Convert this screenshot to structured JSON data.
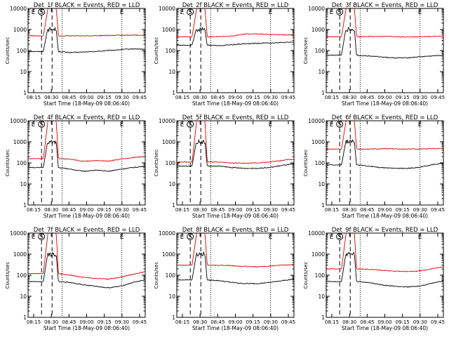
{
  "colors": {
    "events": "#000000",
    "lld": "#e00000",
    "background": "#ffffff",
    "axes": "#000000"
  },
  "chart_data": [
    {
      "type": "line",
      "title": "Det_1f BLACK = Events, RED = LLD",
      "xlabel": "Start Time (18-May-09 08:06:40)",
      "ylabel": "Counts/sec",
      "yscale": "log",
      "ylim": [
        1,
        10000
      ],
      "yticks": [
        "1",
        "10",
        "100",
        "1000",
        "10000"
      ],
      "xticks": [
        "08:15",
        "08:30",
        "08:45",
        "09:00",
        "09:15",
        "09:30",
        "09:45"
      ],
      "annotations": [
        "E",
        "S",
        "E"
      ],
      "series": [
        {
          "color": "#000000",
          "levels": [
            90,
            80,
            85,
            90,
            100,
            110,
            120,
            115
          ]
        },
        {
          "color": "#e00000",
          "levels": [
            500,
            500,
            500,
            510,
            520,
            530,
            540,
            550
          ]
        }
      ]
    },
    {
      "type": "line",
      "title": "Det_2f BLACK = Events, RED = LLD",
      "xlabel": "Start Time (18-May-09 08:06:40)",
      "ylabel": "Counts/sec",
      "yscale": "log",
      "ylim": [
        1,
        10000
      ],
      "yticks": [
        "1",
        "10",
        "100",
        "1000",
        "10000"
      ],
      "xticks": [
        "08:15",
        "08:30",
        "08:45",
        "09:00",
        "09:15",
        "09:30",
        "09:45"
      ],
      "annotations": [
        "E",
        "S",
        "E"
      ],
      "series": [
        {
          "color": "#000000",
          "levels": [
            180,
            170,
            190,
            210,
            220,
            230,
            240,
            250
          ]
        },
        {
          "color": "#e00000",
          "levels": [
            450,
            460,
            480,
            600,
            620,
            580,
            560,
            550
          ]
        }
      ]
    },
    {
      "type": "line",
      "title": "Det_3f BLACK = Events, RED = LLD",
      "xlabel": "Start Time (18-May-09 08:06:40)",
      "ylabel": "Counts/sec",
      "yscale": "log",
      "ylim": [
        1,
        10000
      ],
      "yticks": [
        "1",
        "10",
        "100",
        "1000",
        "10000"
      ],
      "xticks": [
        "08:15",
        "08:30",
        "08:45",
        "09:00",
        "09:15",
        "09:30",
        "09:45"
      ],
      "annotations": [
        "E",
        "S",
        "E"
      ],
      "series": [
        {
          "color": "#000000",
          "levels": [
            60,
            55,
            50,
            45,
            45,
            50,
            55,
            60
          ]
        },
        {
          "color": "#e00000",
          "levels": [
            450,
            460,
            470,
            460,
            440,
            450,
            470,
            480
          ]
        }
      ]
    },
    {
      "type": "line",
      "title": "Det_4f BLACK = Events, RED = LLD",
      "xlabel": "Start Time (18-May-09 08:06:40)",
      "ylabel": "Counts/sec",
      "yscale": "log",
      "ylim": [
        1,
        10000
      ],
      "yticks": [
        "1",
        "10",
        "100",
        "1000",
        "10000"
      ],
      "xticks": [
        "08:15",
        "08:30",
        "08:45",
        "09:00",
        "09:15",
        "09:30",
        "09:45"
      ],
      "annotations": [
        "E",
        "S",
        "E"
      ],
      "series": [
        {
          "color": "#000000",
          "levels": [
            60,
            50,
            40,
            45,
            40,
            50,
            60,
            70
          ]
        },
        {
          "color": "#e00000",
          "levels": [
            160,
            150,
            120,
            130,
            120,
            150,
            180,
            200
          ]
        }
      ]
    },
    {
      "type": "line",
      "title": "Det_5f BLACK = Events, RED = LLD",
      "xlabel": "Start Time (18-May-09 08:06:40)",
      "ylabel": "Counts/sec",
      "yscale": "log",
      "ylim": [
        1,
        10000
      ],
      "yticks": [
        "1",
        "10",
        "100",
        "1000",
        "10000"
      ],
      "xticks": [
        "08:15",
        "08:30",
        "08:45",
        "09:00",
        "09:15",
        "09:30",
        "09:45"
      ],
      "annotations": [
        "E",
        "S",
        "E"
      ],
      "series": [
        {
          "color": "#000000",
          "levels": [
            70,
            70,
            60,
            55,
            55,
            60,
            75,
            90
          ]
        },
        {
          "color": "#e00000",
          "levels": [
            110,
            110,
            100,
            95,
            100,
            110,
            130,
            150
          ]
        }
      ]
    },
    {
      "type": "line",
      "title": "Det_6f BLACK = Events, RED = LLD",
      "xlabel": "Start Time (18-May-09 08:06:40)",
      "ylabel": "Counts/sec",
      "yscale": "log",
      "ylim": [
        1,
        10000
      ],
      "yticks": [
        "1",
        "10",
        "100",
        "1000",
        "10000"
      ],
      "xticks": [
        "08:15",
        "08:30",
        "08:45",
        "09:00",
        "09:15",
        "09:30",
        "09:45"
      ],
      "annotations": [
        "E",
        "S",
        "E"
      ],
      "series": [
        {
          "color": "#000000",
          "levels": [
            80,
            70,
            60,
            55,
            55,
            60,
            80,
            95
          ]
        },
        {
          "color": "#e00000",
          "levels": [
            450,
            450,
            470,
            460,
            450,
            460,
            480,
            480
          ]
        }
      ]
    },
    {
      "type": "line",
      "title": "Det_7f BLACK = Events, RED = LLD",
      "xlabel": "Start Time (18-May-09 08:06:40)",
      "ylabel": "Counts/sec",
      "yscale": "log",
      "ylim": [
        1,
        10000
      ],
      "yticks": [
        "1",
        "10",
        "100",
        "1000",
        "10000"
      ],
      "xticks": [
        "08:15",
        "08:30",
        "08:45",
        "09:00",
        "09:15",
        "09:30",
        "09:45"
      ],
      "annotations": [
        "E",
        "S",
        "E"
      ],
      "series": [
        {
          "color": "#000000",
          "levels": [
            50,
            45,
            35,
            30,
            25,
            30,
            45,
            60
          ]
        },
        {
          "color": "#e00000",
          "levels": [
            120,
            100,
            80,
            70,
            65,
            80,
            110,
            150
          ]
        }
      ]
    },
    {
      "type": "line",
      "title": "Det_8f BLACK = Events, RED = LLD",
      "xlabel": "Start Time (18-May-09 08:06:40)",
      "ylabel": "Counts/sec",
      "yscale": "log",
      "ylim": [
        1,
        10000
      ],
      "yticks": [
        "1",
        "10",
        "100",
        "1000",
        "10000"
      ],
      "xticks": [
        "08:15",
        "08:30",
        "08:45",
        "09:00",
        "09:15",
        "09:30",
        "09:45"
      ],
      "annotations": [
        "E",
        "S",
        "E"
      ],
      "series": [
        {
          "color": "#000000",
          "levels": [
            60,
            55,
            45,
            40,
            40,
            45,
            55,
            65
          ]
        },
        {
          "color": "#e00000",
          "levels": [
            300,
            300,
            280,
            260,
            250,
            270,
            300,
            320
          ]
        }
      ]
    },
    {
      "type": "line",
      "title": "Det_9f BLACK = Events, RED = LLD",
      "xlabel": "Start Time (18-May-09 08:06:40)",
      "ylabel": "Counts/sec",
      "yscale": "log",
      "ylim": [
        1,
        10000
      ],
      "yticks": [
        "1",
        "10",
        "100",
        "1000",
        "10000"
      ],
      "xticks": [
        "08:15",
        "08:30",
        "08:45",
        "09:00",
        "09:15",
        "09:30",
        "09:45"
      ],
      "annotations": [
        "E",
        "S",
        "E"
      ],
      "series": [
        {
          "color": "#000000",
          "levels": [
            50,
            45,
            35,
            30,
            28,
            30,
            40,
            55
          ]
        },
        {
          "color": "#e00000",
          "levels": [
            200,
            190,
            170,
            160,
            150,
            160,
            200,
            260
          ]
        }
      ]
    }
  ]
}
